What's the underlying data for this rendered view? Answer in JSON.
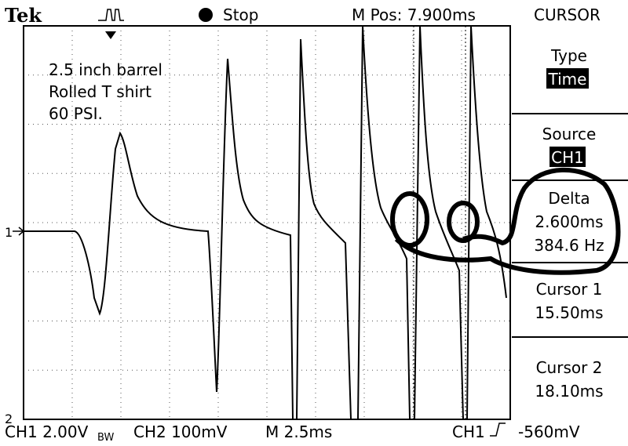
{
  "header": {
    "brand": "Tek",
    "state": "Stop",
    "position": "M Pos: 7.900ms",
    "menu_title": "CURSOR"
  },
  "annotation": {
    "lines": [
      "2.5 inch barrel",
      "Rolled T shirt",
      "60 PSI."
    ]
  },
  "markers": {
    "ch1": "1",
    "ch2": "2"
  },
  "menu": {
    "type": {
      "label": "Type",
      "value": "Time"
    },
    "source": {
      "label": "Source",
      "value": "CH1"
    },
    "delta": {
      "label": "Delta",
      "time": "2.600ms",
      "freq": "384.6 Hz"
    },
    "cursor1": {
      "label": "Cursor 1",
      "value": "15.50ms"
    },
    "cursor2": {
      "label": "Cursor 2",
      "value": "18.10ms"
    }
  },
  "footer": {
    "ch1": "CH1  2.00V",
    "bw": "BW",
    "ch2": "CH2  100mV",
    "time": "M 2.5ms",
    "trig_ch": "CH1",
    "trig_level": "-560mV"
  }
}
